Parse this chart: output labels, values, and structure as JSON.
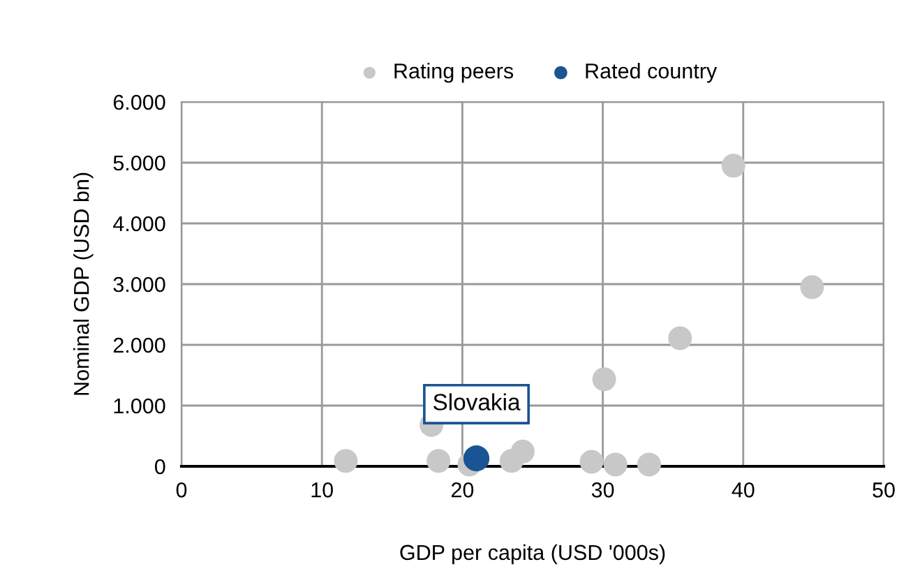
{
  "chart_data": {
    "type": "scatter",
    "xlabel": "GDP per capita (USD '000s)",
    "ylabel": "Nominal GDP (USD bn)",
    "xlim": [
      0,
      50
    ],
    "xticks": [
      0,
      10,
      20,
      30,
      40,
      50
    ],
    "ylim": [
      0,
      6000
    ],
    "yticks": [
      {
        "value": 0,
        "label": "0"
      },
      {
        "value": 1000,
        "label": "1.000"
      },
      {
        "value": 2000,
        "label": "2.000"
      },
      {
        "value": 3000,
        "label": "3.000"
      },
      {
        "value": 4000,
        "label": "4.000"
      },
      {
        "value": 5000,
        "label": "5.000"
      },
      {
        "value": 6000,
        "label": "6.000"
      }
    ],
    "grid": true,
    "legend": "top",
    "marker": "circle",
    "series": [
      {
        "name": "Rating peers",
        "color": "#c8c8c8",
        "x": [
          39.3,
          44.9,
          35.5,
          30.1,
          17.8,
          11.7,
          18.3,
          20.5,
          23.5,
          24.3,
          29.2,
          30.9,
          33.3
        ],
        "values": [
          4950,
          2950,
          2110,
          1435,
          680,
          90,
          90,
          30,
          90,
          245,
          75,
          30,
          30
        ]
      },
      {
        "name": "Rated country",
        "color": "#1a5494",
        "x": [
          21.0
        ],
        "values": [
          130
        ]
      }
    ],
    "annotations": [
      {
        "text": "Slovakia",
        "x": 21.0,
        "y": 130
      }
    ]
  }
}
